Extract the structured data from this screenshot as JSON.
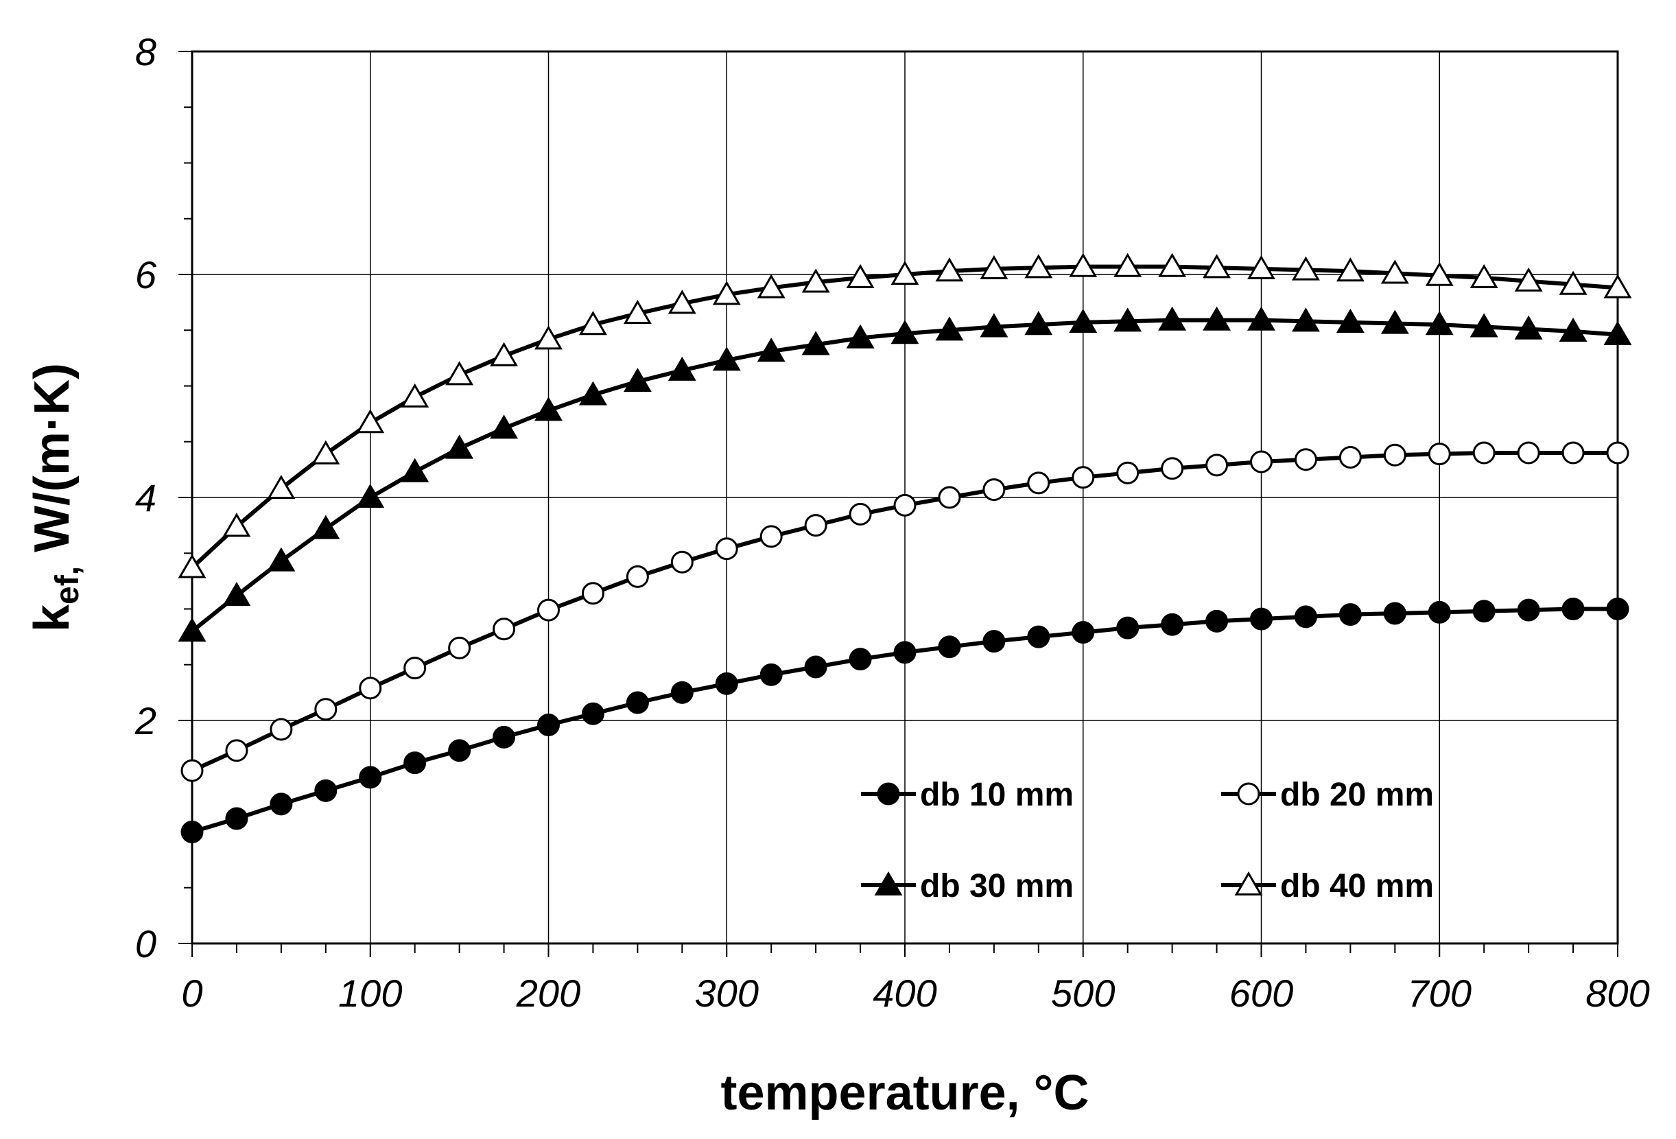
{
  "chart_data": {
    "type": "line",
    "title": "",
    "xlabel": "temperature, °C",
    "ylabel_main": "k",
    "ylabel_sub": "ef,",
    "ylabel_rest": " W/(m·K)",
    "xlim": [
      0,
      800
    ],
    "ylim": [
      0,
      8
    ],
    "x_ticks": [
      0,
      100,
      200,
      300,
      400,
      500,
      600,
      700,
      800
    ],
    "x_tick_labels": [
      "0",
      "100",
      "200",
      "300",
      "400",
      "500",
      "600",
      "700",
      "800"
    ],
    "y_ticks": [
      0,
      2,
      4,
      6,
      8
    ],
    "y_tick_labels": [
      "0",
      "2",
      "4",
      "6",
      "8"
    ],
    "grid": true,
    "legend_position": "bottom-right",
    "x": [
      0,
      25,
      50,
      75,
      100,
      125,
      150,
      175,
      200,
      225,
      250,
      275,
      300,
      325,
      350,
      375,
      400,
      425,
      450,
      475,
      500,
      525,
      550,
      575,
      600,
      625,
      650,
      675,
      700,
      725,
      750,
      775,
      800
    ],
    "series": [
      {
        "name": "db 10 mm",
        "marker": "circle-filled",
        "values": [
          1.0,
          1.12,
          1.25,
          1.37,
          1.49,
          1.62,
          1.73,
          1.85,
          1.96,
          2.06,
          2.16,
          2.25,
          2.33,
          2.41,
          2.48,
          2.55,
          2.61,
          2.66,
          2.71,
          2.75,
          2.79,
          2.83,
          2.86,
          2.89,
          2.91,
          2.93,
          2.95,
          2.96,
          2.97,
          2.98,
          2.99,
          3.0,
          3.0
        ]
      },
      {
        "name": "db 20 mm",
        "marker": "circle-open",
        "values": [
          1.55,
          1.73,
          1.92,
          2.1,
          2.29,
          2.47,
          2.65,
          2.82,
          2.99,
          3.14,
          3.29,
          3.42,
          3.54,
          3.65,
          3.75,
          3.85,
          3.93,
          4.0,
          4.07,
          4.13,
          4.18,
          4.22,
          4.26,
          4.29,
          4.32,
          4.34,
          4.36,
          4.38,
          4.39,
          4.4,
          4.4,
          4.4,
          4.4
        ]
      },
      {
        "name": "db 30 mm",
        "marker": "triangle-filled",
        "values": [
          2.8,
          3.12,
          3.43,
          3.72,
          4.0,
          4.23,
          4.44,
          4.62,
          4.78,
          4.92,
          5.04,
          5.14,
          5.23,
          5.31,
          5.37,
          5.43,
          5.47,
          5.5,
          5.53,
          5.55,
          5.57,
          5.58,
          5.59,
          5.59,
          5.59,
          5.58,
          5.57,
          5.56,
          5.55,
          5.53,
          5.51,
          5.49,
          5.46
        ]
      },
      {
        "name": "db 40 mm",
        "marker": "triangle-open",
        "values": [
          3.37,
          3.74,
          4.08,
          4.39,
          4.67,
          4.9,
          5.1,
          5.27,
          5.42,
          5.55,
          5.65,
          5.74,
          5.82,
          5.88,
          5.93,
          5.97,
          6.0,
          6.03,
          6.05,
          6.06,
          6.07,
          6.07,
          6.07,
          6.06,
          6.05,
          6.04,
          6.03,
          6.01,
          5.99,
          5.97,
          5.94,
          5.91,
          5.88
        ]
      }
    ]
  }
}
